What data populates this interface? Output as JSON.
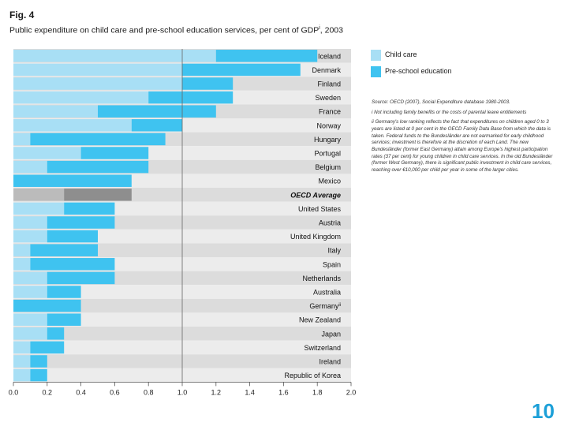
{
  "figure": {
    "label": "Fig. 4",
    "title": "Public expenditure on child care and pre-school education services, per cent of GDP",
    "title_sup": "i",
    "title_year": ", 2003"
  },
  "legend": {
    "child_care": "Child care",
    "preschool": "Pre-school education"
  },
  "notes": [
    "Source: OECD (2007), Social Expenditure database 1980-2003.",
    "i  Not including family benefits or the costs of parental leave entitlements",
    "ii  Germany's low ranking reflects the fact that expenditures on children aged 0 to 3 years are listed at 0 per cent in the OECD Family Data Base from which the data is taken. Federal funds to the Bundesländer are not earmarked for early childhood services; investment is therefore at the discretion of each Land. The new Bundesländer (former East Germany) attain among Europe's highest participation rates (37 per cent) for young children in child care services. In the old Bundesländer (former West Germany), there is significant public investment in child care services, reaching over €10,000 per child per year in some of the larger cities."
  ],
  "page_number": "10",
  "colors": {
    "child_care": "#a8dff5",
    "preschool": "#3fc3f0",
    "avg_child_care": "#bbbbbb",
    "avg_preschool": "#8e8e8e",
    "row_dark": "#dcdcdc",
    "row_light": "#ececec",
    "page_number": "#1da0d8"
  },
  "chart_data": {
    "type": "bar",
    "orientation": "horizontal",
    "stacked": true,
    "title": "Public expenditure on child care and pre-school education services, per cent of GDP, 2003",
    "xlabel": "",
    "ylabel": "",
    "xlim": [
      0,
      2.0
    ],
    "x_ticks": [
      "0.0",
      "0.2",
      "0.4",
      "0.6",
      "0.8",
      "1.0",
      "1.2",
      "1.4",
      "1.6",
      "1.8",
      "2.0"
    ],
    "reference_line": 1.0,
    "categories": [
      "Iceland",
      "Denmark",
      "Finland",
      "Sweden",
      "France",
      "Norway",
      "Hungary",
      "Portugal",
      "Belgium",
      "Mexico",
      "OECD Average",
      "United States",
      "Austria",
      "United Kingdom",
      "Italy",
      "Spain",
      "Netherlands",
      "Australia",
      "Germany",
      "New Zealand",
      "Japan",
      "Switzerland",
      "Ireland",
      "Republic of Korea"
    ],
    "category_superscripts": {
      "Germany": "ii"
    },
    "highlight_category": "OECD Average",
    "series": [
      {
        "name": "Child care",
        "values": [
          1.2,
          1.0,
          1.0,
          0.8,
          0.5,
          0.7,
          0.1,
          0.4,
          0.2,
          0.0,
          0.3,
          0.3,
          0.2,
          0.2,
          0.1,
          0.1,
          0.2,
          0.2,
          0.0,
          0.2,
          0.2,
          0.1,
          0.1,
          0.1
        ]
      },
      {
        "name": "Pre-school education",
        "values": [
          0.6,
          0.7,
          0.3,
          0.5,
          0.7,
          0.3,
          0.8,
          0.4,
          0.6,
          0.7,
          0.4,
          0.3,
          0.4,
          0.3,
          0.4,
          0.5,
          0.4,
          0.2,
          0.4,
          0.2,
          0.1,
          0.2,
          0.1,
          0.1
        ]
      }
    ]
  }
}
